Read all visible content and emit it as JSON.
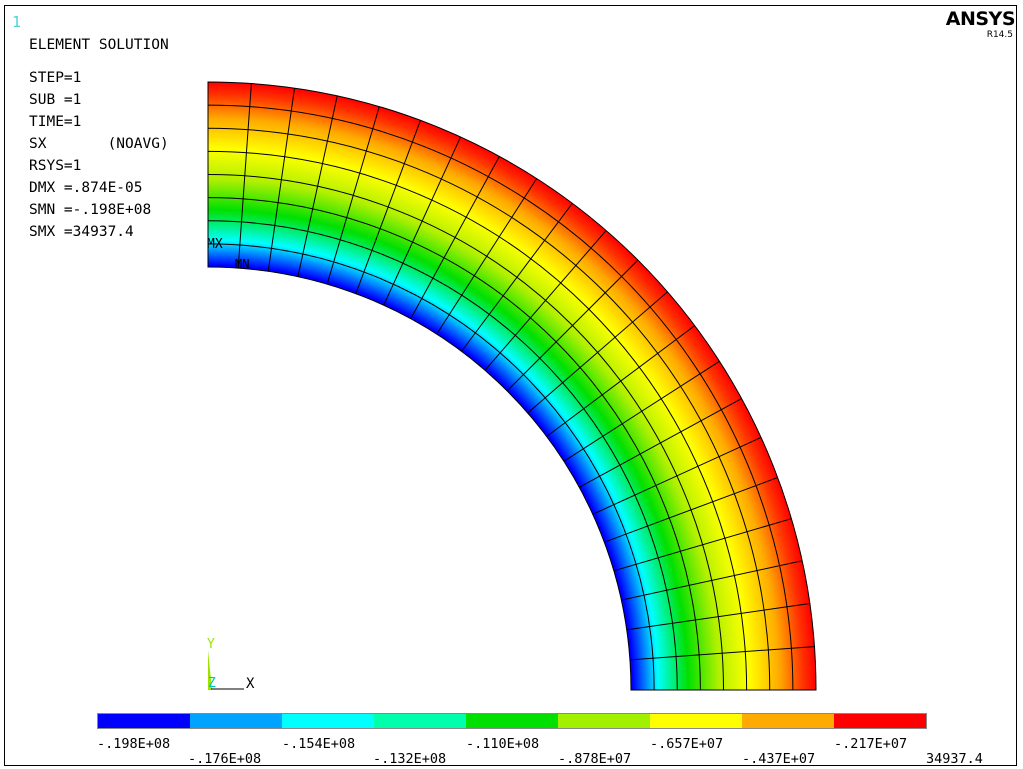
{
  "window_number": "1",
  "brand": "ANSYS",
  "version": "R14.5",
  "title": "ELEMENT SOLUTION",
  "info_lines": [
    {
      "key": "STEP",
      "text": "STEP=1"
    },
    {
      "key": "SUB",
      "text": "SUB =1"
    },
    {
      "key": "TIME",
      "text": "TIME=1"
    },
    {
      "key": "SX",
      "text": "SX       (NOAVG)"
    },
    {
      "key": "RSYS",
      "text": "RSYS=1"
    },
    {
      "key": "DMX",
      "text": "DMX =.874E-05"
    },
    {
      "key": "SMN",
      "text": "SMN =-.198E+08"
    },
    {
      "key": "SMX",
      "text": "SMX =34937.4"
    }
  ],
  "markers": {
    "max": "MX",
    "min": "MN"
  },
  "triad": {
    "y": "Y",
    "x": "X",
    "z": "Z"
  },
  "colorbar": {
    "colors": [
      "#0000ff",
      "#00a3ff",
      "#00ffff",
      "#00ffaa",
      "#00e000",
      "#a0f000",
      "#ffff00",
      "#ffaa00",
      "#ff0000"
    ],
    "labels_top": [
      "-.198E+08",
      "-.154E+08",
      "-.110E+08",
      "-.657E+07",
      "-.217E+07"
    ],
    "labels_bottom": [
      "-.176E+08",
      "-.132E+08",
      "-.878E+07",
      "-.437E+07",
      "34937.4"
    ]
  },
  "model": {
    "quantity": "SX",
    "min": -19800000,
    "max": 34937.4,
    "radial_divisions": 8,
    "angular_divisions": 22,
    "angle_span_deg": 90
  }
}
